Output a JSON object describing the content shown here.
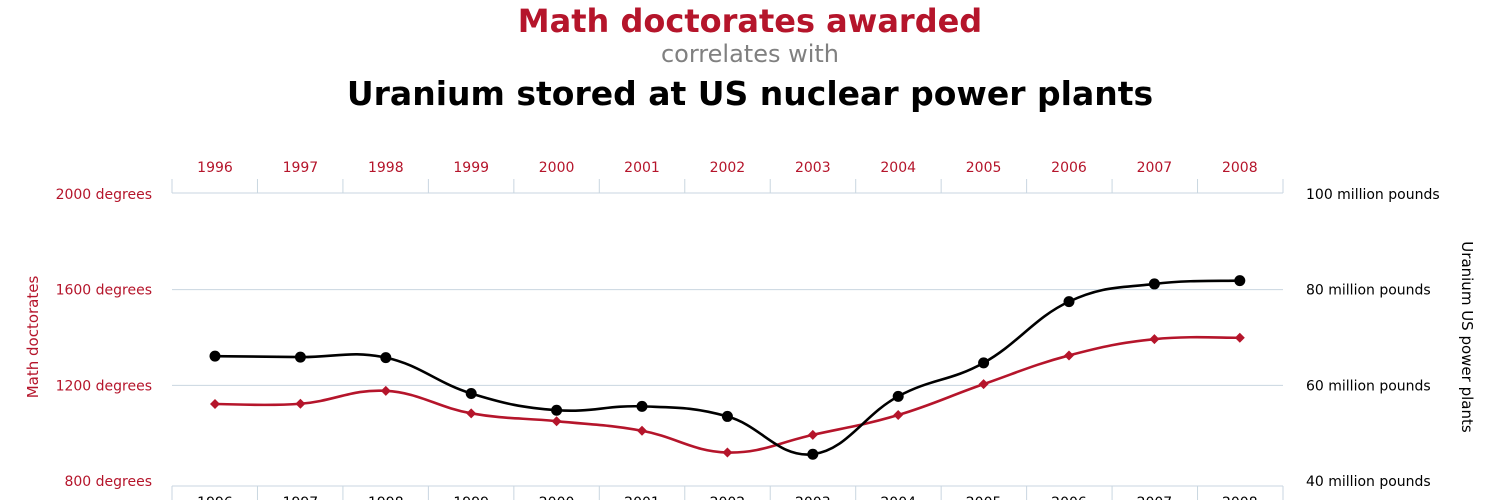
{
  "header": {
    "title": "Math doctorates awarded",
    "connector": "correlates with",
    "subtitle": "Uranium stored at US nuclear power plants"
  },
  "colors": {
    "series1": "#b5152b",
    "series2": "#000000",
    "grid": "#c9d6e0"
  },
  "chart_data": {
    "type": "line",
    "x": [
      1996,
      1997,
      1998,
      1999,
      2000,
      2001,
      2002,
      2003,
      2004,
      2005,
      2006,
      2007,
      2008
    ],
    "x_tick_labels": [
      "1996",
      "1997",
      "1998",
      "1999",
      "2000",
      "2001",
      "2002",
      "2003",
      "2004",
      "2005",
      "2006",
      "2007",
      "2008"
    ],
    "series": [
      {
        "name": "Math doctorates",
        "axis": "left",
        "color": "#b5152b",
        "marker": "diamond",
        "values": [
          1122,
          1123,
          1177,
          1083,
          1050,
          1010,
          919,
          993,
          1076,
          1205,
          1325,
          1393,
          1399
        ]
      },
      {
        "name": "Uranium US power plants",
        "axis": "right",
        "color": "#000000",
        "marker": "circle",
        "values": [
          66.1,
          65.9,
          65.8,
          58.3,
          54.8,
          55.6,
          53.5,
          45.6,
          57.7,
          64.7,
          77.5,
          81.2,
          81.9
        ]
      }
    ],
    "y_left": {
      "label": "Math doctorates",
      "ylim": [
        800,
        2000
      ],
      "ticks": [
        800,
        1200,
        1600,
        2000
      ],
      "tick_labels": [
        "800 degrees",
        "1200 degrees",
        "1600 degrees",
        "2000 degrees"
      ]
    },
    "y_right": {
      "label": "Uranium US power plants",
      "ylim": [
        40,
        100
      ],
      "ticks": [
        40,
        60,
        80,
        100
      ],
      "tick_labels": [
        "40 million pounds",
        "60 million pounds",
        "80 million pounds",
        "100 million pounds"
      ]
    },
    "grid": true,
    "legend": "none"
  }
}
